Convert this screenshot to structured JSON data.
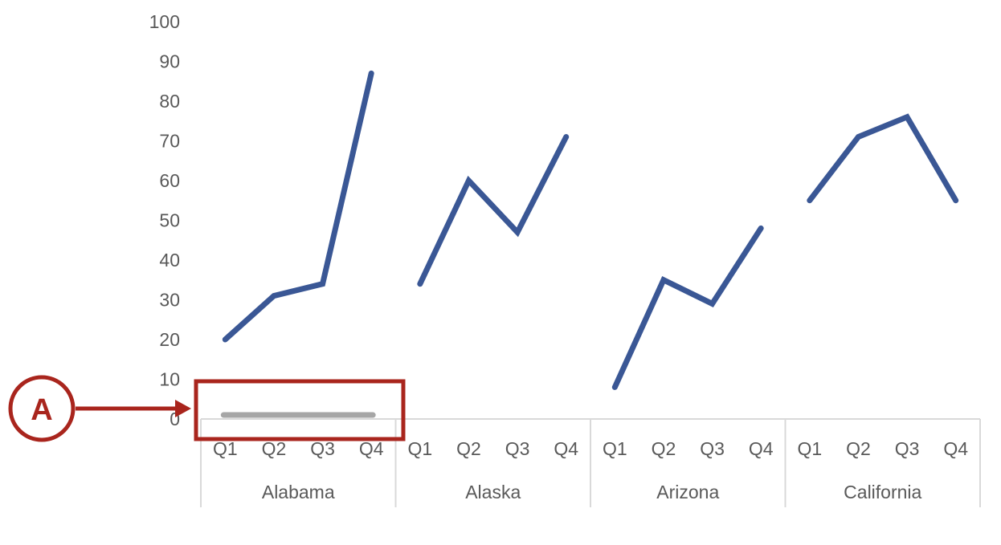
{
  "chart_data": {
    "type": "line",
    "title": "",
    "xlabel": "",
    "ylabel": "",
    "ylim": [
      0,
      100
    ],
    "yticks": [
      "0",
      "10",
      "20",
      "30",
      "40",
      "50",
      "60",
      "70",
      "80",
      "90",
      "100"
    ],
    "grid": false,
    "legend": "none",
    "quarters": [
      "Q1",
      "Q2",
      "Q3",
      "Q4"
    ],
    "groups": [
      {
        "name": "Alabama",
        "values": [
          20,
          31,
          34,
          87
        ]
      },
      {
        "name": "Alaska",
        "values": [
          34,
          60,
          47,
          71
        ]
      },
      {
        "name": "Arizona",
        "values": [
          8,
          35,
          29,
          48
        ]
      },
      {
        "name": "California",
        "values": [
          55,
          71,
          76,
          55
        ]
      }
    ],
    "series_color": "#3a5795"
  },
  "annotation": {
    "label": "A",
    "color": "#a9251d",
    "highlight_line_color": "#a6a6a6",
    "highlight_line_value": 1
  }
}
